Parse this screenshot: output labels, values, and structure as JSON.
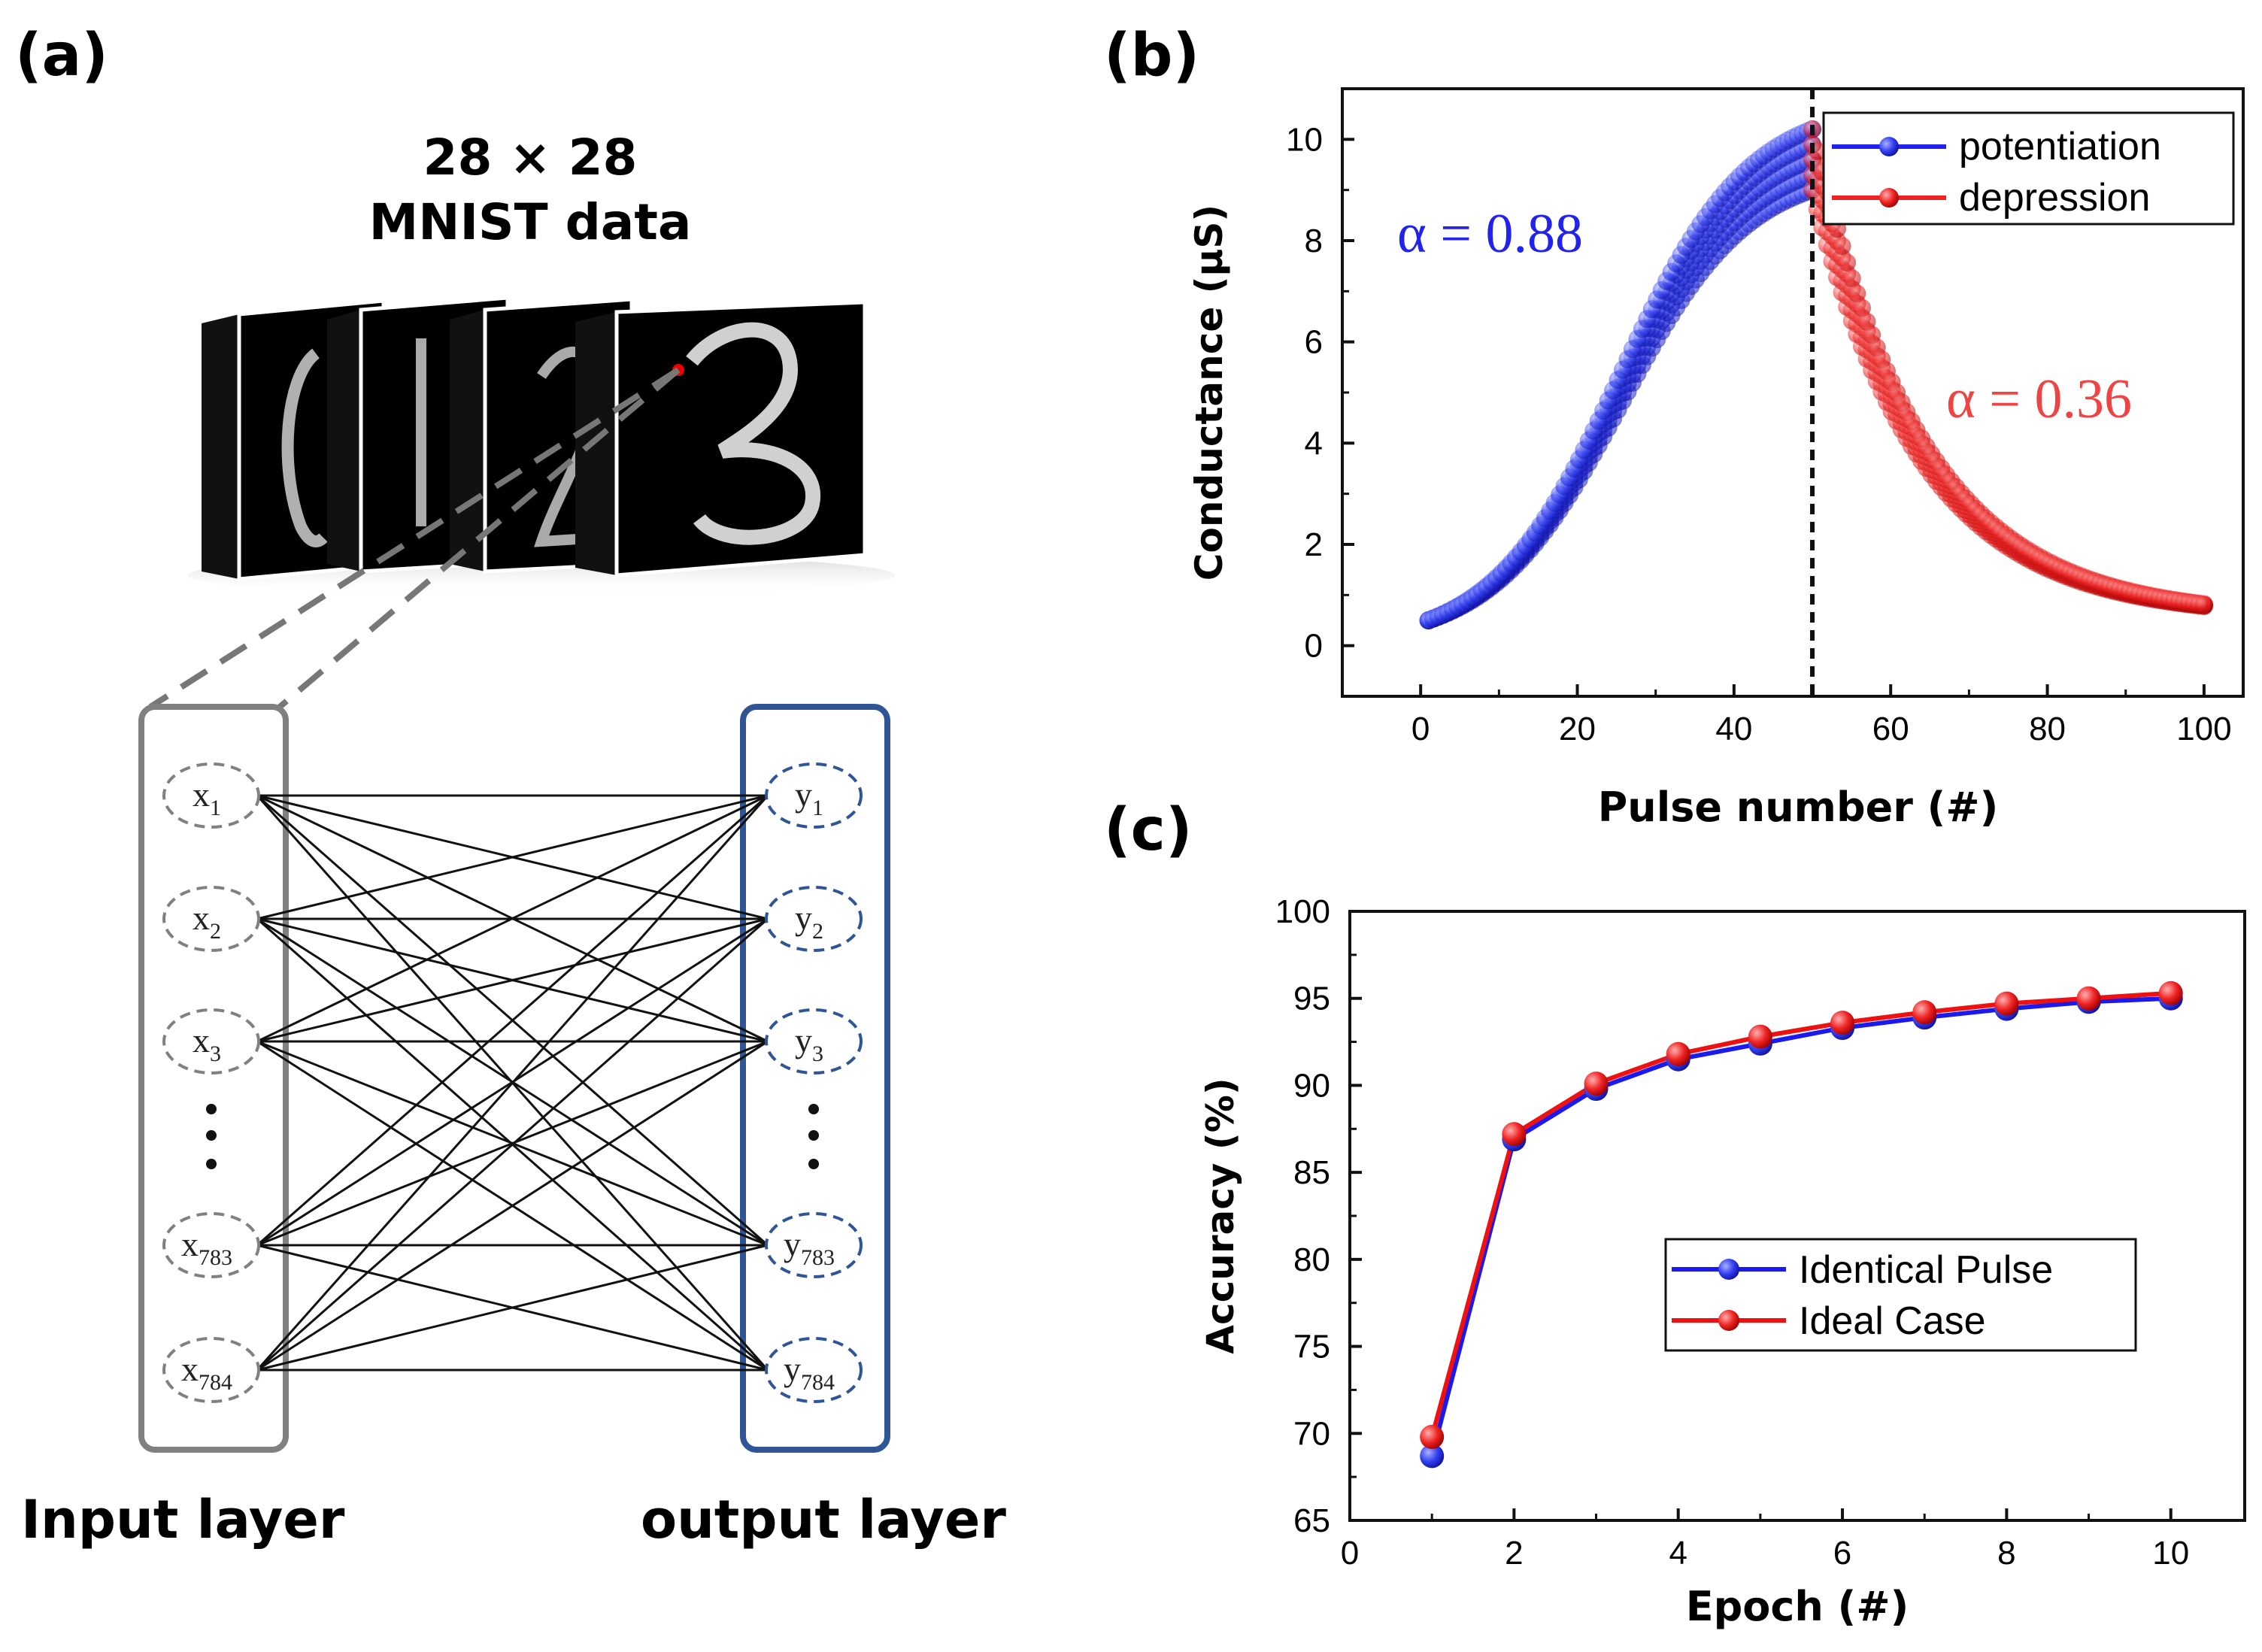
{
  "panels": {
    "a": {
      "label": "(a)"
    },
    "b": {
      "label": "(b)"
    },
    "c": {
      "label": "(c)"
    }
  },
  "mnist": {
    "title_line1": "28 × 28",
    "title_line2": "MNIST data",
    "digits": [
      "0",
      "1",
      "2",
      "3"
    ]
  },
  "network": {
    "input_nodes": [
      {
        "base": "x",
        "sub": "1"
      },
      {
        "base": "x",
        "sub": "2"
      },
      {
        "base": "x",
        "sub": "3"
      },
      {
        "base": "x",
        "sub": "783"
      },
      {
        "base": "x",
        "sub": "784"
      }
    ],
    "output_nodes": [
      {
        "base": "y",
        "sub": "1"
      },
      {
        "base": "y",
        "sub": "2"
      },
      {
        "base": "y",
        "sub": "3"
      },
      {
        "base": "y",
        "sub": "783"
      },
      {
        "base": "y",
        "sub": "784"
      }
    ],
    "input_label": "Input layer",
    "output_label": "output layer",
    "colors": {
      "input": "#808080",
      "output": "#2f5597"
    }
  },
  "chart_data": [
    {
      "type": "scatter",
      "panel": "b",
      "xlabel": "Pulse number (#)",
      "ylabel": "Conductance (μS)",
      "xlim": [
        -10,
        105
      ],
      "ylim": [
        -1,
        11
      ],
      "xticks": [
        0,
        20,
        40,
        60,
        80,
        100
      ],
      "yticks": [
        0,
        2,
        4,
        6,
        8,
        10
      ],
      "grid": false,
      "legend_position": "top-right",
      "vline_x": 50,
      "series": [
        {
          "name": "potentiation",
          "color": "#2222ee",
          "x": [
            1,
            50
          ],
          "y_lower": [
            0.5,
            9.0
          ],
          "y_upper": [
            0.5,
            10.2
          ],
          "alpha": 0.88
        },
        {
          "name": "depression",
          "color": "#ee2222",
          "x": [
            50,
            100
          ],
          "y_lower": [
            9.0,
            0.78
          ],
          "y_upper": [
            10.2,
            0.82
          ],
          "alpha": 0.36
        }
      ],
      "annotations": [
        {
          "text": "α = 0.88",
          "color": "#2222ee"
        },
        {
          "text": "α = 0.36",
          "color": "#ee4444"
        }
      ]
    },
    {
      "type": "line",
      "panel": "c",
      "xlabel": "Epoch (#)",
      "ylabel": "Accuracy (%)",
      "xlim": [
        0,
        10.9
      ],
      "ylim": [
        65,
        100
      ],
      "xticks": [
        0,
        2,
        4,
        6,
        8,
        10
      ],
      "yticks": [
        65,
        70,
        75,
        80,
        85,
        90,
        95,
        100
      ],
      "grid": false,
      "legend_position": "lower-right",
      "x": [
        1,
        2,
        3,
        4,
        5,
        6,
        7,
        8,
        9,
        10
      ],
      "series": [
        {
          "name": "Identical Pulse",
          "color": "#1a1aee",
          "values": [
            68.7,
            86.9,
            89.8,
            91.5,
            92.4,
            93.3,
            93.9,
            94.4,
            94.8,
            95.0
          ]
        },
        {
          "name": "Ideal Case",
          "color": "#ee1111",
          "values": [
            69.8,
            87.2,
            90.1,
            91.8,
            92.8,
            93.6,
            94.2,
            94.7,
            95.0,
            95.3
          ]
        }
      ]
    }
  ]
}
